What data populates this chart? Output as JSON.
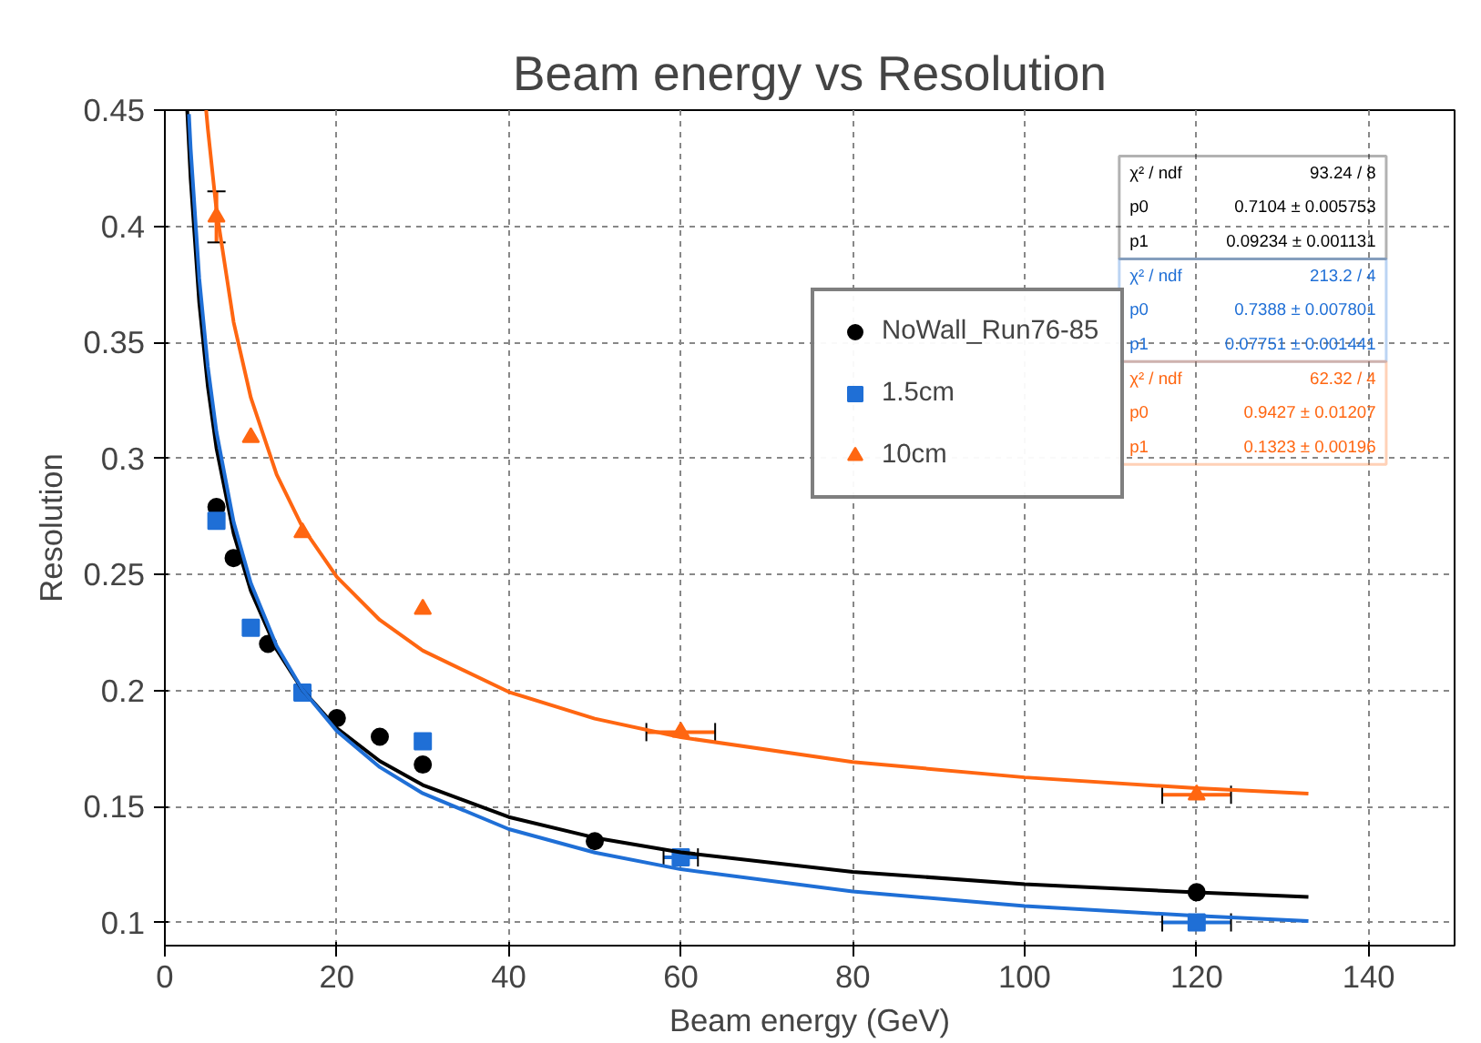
{
  "chart_data": {
    "type": "scatter",
    "title": "Beam energy vs Resolution",
    "xlabel": "Beam energy (GeV)",
    "ylabel": "Resolution",
    "xlim": [
      0,
      150
    ],
    "ylim": [
      0.09,
      0.45
    ],
    "xticks": [
      0,
      20,
      40,
      60,
      80,
      100,
      120,
      140
    ],
    "yticks": [
      0.1,
      0.15,
      0.2,
      0.25,
      0.3,
      0.35,
      0.4,
      0.45
    ],
    "grid": true,
    "legend": "top right",
    "series": [
      {
        "name": "NoWall_Run76-85",
        "color": "#000000",
        "marker": "circle",
        "x": [
          6,
          8,
          12,
          20,
          25,
          30,
          50,
          120
        ],
        "values": [
          0.279,
          0.257,
          0.22,
          0.188,
          0.18,
          0.168,
          0.135,
          0.113
        ]
      },
      {
        "name": "1.5cm",
        "color": "#1f6fd6",
        "marker": "square",
        "x": [
          6,
          10,
          16,
          30,
          60,
          120
        ],
        "values": [
          0.273,
          0.227,
          0.199,
          0.178,
          0.128,
          0.1
        ],
        "xerrors": [
          null,
          null,
          null,
          null,
          2,
          4
        ]
      },
      {
        "name": "10cm",
        "color": "#ff6611",
        "marker": "triangle",
        "x": [
          6,
          10,
          16,
          30,
          60,
          120
        ],
        "values": [
          0.404,
          0.309,
          0.268,
          0.235,
          0.182,
          0.155
        ],
        "errors": [
          0.011,
          null,
          null,
          null,
          null,
          null
        ],
        "xerrors": [
          null,
          null,
          null,
          null,
          4,
          4
        ]
      },
      {
        "type": "line",
        "color": "#000000",
        "x": [
          2.6,
          3,
          4,
          5,
          6,
          8,
          10,
          13,
          16,
          20,
          25,
          30,
          40,
          50,
          60,
          80,
          100,
          120,
          133
        ],
        "values": [
          0.45,
          0.4204,
          0.367,
          0.3309,
          0.3044,
          0.2676,
          0.2429,
          0.2176,
          0.2002,
          0.1837,
          0.1695,
          0.1592,
          0.1454,
          0.1365,
          0.1302,
          0.1218,
          0.1165,
          0.1129,
          0.111
        ]
      },
      {
        "type": "line",
        "color": "#1f6fd6",
        "x": [
          2.8,
          3,
          4,
          5,
          6,
          8,
          10,
          13,
          16,
          20,
          25,
          30,
          40,
          50,
          60,
          80,
          100,
          120,
          133
        ],
        "values": [
          0.4483,
          0.4335,
          0.3775,
          0.3394,
          0.3114,
          0.2725,
          0.2462,
          0.2191,
          0.2003,
          0.1825,
          0.1669,
          0.1556,
          0.1402,
          0.1301,
          0.1229,
          0.1133,
          0.1071,
          0.1028,
          0.1006
        ]
      },
      {
        "type": "line",
        "color": "#ff6611",
        "x": [
          4.8,
          5,
          6,
          8,
          10,
          13,
          16,
          20,
          25,
          30,
          40,
          50,
          60,
          80,
          100,
          120,
          133
        ],
        "values": [
          0.45,
          0.4419,
          0.407,
          0.3586,
          0.3261,
          0.293,
          0.2703,
          0.2489,
          0.2303,
          0.2171,
          0.1993,
          0.1878,
          0.1798,
          0.1691,
          0.1625,
          0.1578,
          0.1555
        ]
      }
    ],
    "annotations": [
      "χ² / ndf",
      "93.24 / 8",
      "p0",
      "0.7104 ± 0.005753",
      "p1",
      "0.09234 ± 0.001131",
      "χ² / ndf",
      "213.2 / 4",
      "p0",
      "0.7388 ± 0.007801",
      "p1",
      "0.07751 ± 0.001441",
      "χ² / ndf",
      "62.32 / 4",
      "p0",
      "0.9427 ± 0.01207",
      "p1",
      "0.1323 ± 0.00196"
    ]
  }
}
